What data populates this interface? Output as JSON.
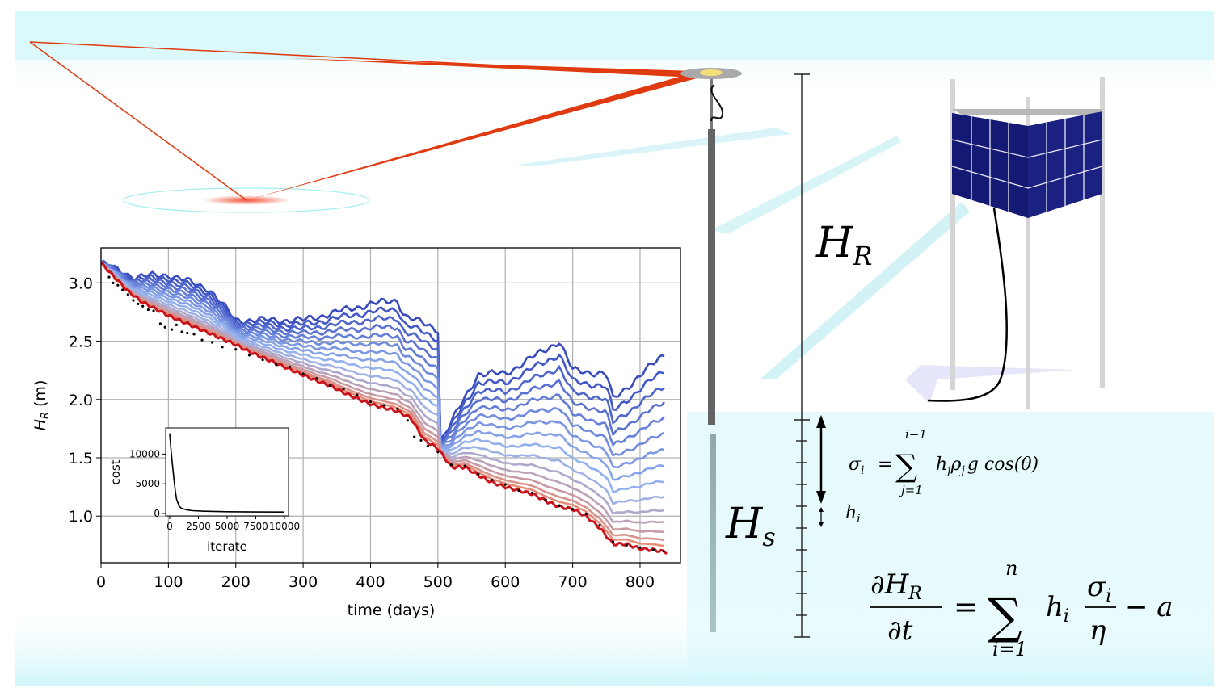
{
  "diagram": {
    "labels": {
      "hr_label": {
        "main": "H",
        "sub": "R"
      },
      "hs_label": {
        "main": "H",
        "sub": "s"
      },
      "hi_label": {
        "main": "h",
        "sub": "i"
      }
    },
    "equations": {
      "sigma": {
        "lhs_main": "σ",
        "lhs_sub": "i",
        "equals": "=",
        "sum_upper": "i−1",
        "sum_lower": "j=1",
        "terms": [
          "h",
          "j",
          "ρ",
          "j",
          "g cos(θ)"
        ]
      },
      "rate": {
        "num": "∂H",
        "num_sub": "R",
        "den": "∂t",
        "equals": "=",
        "sum_upper": "n",
        "sum_lower": "i=1",
        "term_h": "h",
        "term_sub": "i",
        "frac_num": "σ",
        "frac_num_sub": "i",
        "frac_den": "η",
        "tail": "− a"
      }
    },
    "colors": {
      "sky": "#d8f8fb",
      "laser": "#e03a10",
      "panel": "#141a73",
      "mast": "#d5d5d5",
      "stake": "#666666"
    }
  },
  "chart_data": [
    {
      "type": "line",
      "title": "",
      "xlabel": "time (days)",
      "ylabel_main": "H",
      "ylabel_sub": "R",
      "ylabel_unit": " (m)",
      "xlim": [
        0,
        860
      ],
      "ylim": [
        0.6,
        3.3
      ],
      "xticks": [
        0,
        100,
        200,
        300,
        400,
        500,
        600,
        700,
        800
      ],
      "yticks": [
        1.0,
        1.5,
        2.0,
        2.5,
        3.0
      ],
      "xtick_labels": [
        "0",
        "100",
        "200",
        "300",
        "400",
        "500",
        "600",
        "700",
        "800"
      ],
      "ytick_labels": [
        "1.0",
        "1.5",
        "2.0",
        "2.5",
        "3.0"
      ],
      "grid": true,
      "best_fit": {
        "x": [
          0,
          20,
          40,
          60,
          80,
          100,
          120,
          140,
          160,
          180,
          200,
          220,
          240,
          260,
          280,
          300,
          320,
          340,
          360,
          380,
          400,
          420,
          440,
          460,
          480,
          500,
          520,
          540,
          560,
          580,
          600,
          620,
          640,
          660,
          680,
          700,
          720,
          740,
          760,
          780,
          800,
          820,
          840
        ],
        "y": [
          3.17,
          3.05,
          2.93,
          2.84,
          2.78,
          2.72,
          2.67,
          2.62,
          2.57,
          2.52,
          2.47,
          2.41,
          2.36,
          2.31,
          2.26,
          2.21,
          2.16,
          2.12,
          2.06,
          2.01,
          1.96,
          1.93,
          1.9,
          1.84,
          1.65,
          1.58,
          1.42,
          1.42,
          1.35,
          1.29,
          1.25,
          1.22,
          1.19,
          1.13,
          1.08,
          1.06,
          1.0,
          0.9,
          0.76,
          0.76,
          0.72,
          0.71,
          0.69
        ]
      },
      "observations": {
        "x": [
          12,
          18,
          25,
          32,
          40,
          48,
          55,
          62,
          70,
          78,
          88,
          95,
          105,
          112,
          120,
          128,
          138,
          150,
          165,
          180,
          200,
          220,
          240,
          260,
          280,
          300,
          320,
          340,
          360,
          380,
          400,
          420,
          440,
          455,
          465,
          475,
          485,
          500,
          520,
          540,
          560,
          580,
          600,
          620,
          640,
          660,
          680,
          700,
          720,
          740,
          760,
          780,
          800,
          820,
          835
        ],
        "y": [
          3.05,
          3.0,
          2.98,
          2.94,
          2.9,
          2.85,
          2.82,
          2.8,
          2.77,
          2.76,
          2.65,
          2.62,
          2.6,
          2.64,
          2.58,
          2.57,
          2.56,
          2.51,
          2.49,
          2.45,
          2.43,
          2.38,
          2.34,
          2.3,
          2.28,
          2.22,
          2.18,
          2.12,
          2.09,
          2.04,
          1.98,
          1.95,
          1.92,
          1.82,
          1.68,
          1.65,
          1.6,
          1.55,
          1.44,
          1.43,
          1.36,
          1.31,
          1.27,
          1.22,
          1.2,
          1.14,
          1.09,
          1.06,
          1.02,
          0.92,
          0.78,
          0.75,
          0.73,
          0.71,
          0.7
        ]
      },
      "ensemble": {
        "x": [
          0,
          50,
          100,
          160,
          200,
          300,
          400,
          440,
          450,
          500,
          502,
          560,
          600,
          680,
          700,
          750,
          760,
          838
        ],
        "top_y": [
          3.17,
          3.05,
          3.07,
          2.95,
          2.68,
          2.68,
          2.82,
          2.85,
          2.72,
          2.6,
          1.62,
          2.22,
          2.22,
          2.5,
          2.25,
          2.22,
          2.0,
          2.4
        ],
        "levels": [
          1.0,
          0.92,
          0.84,
          0.76,
          0.68,
          0.6,
          0.52,
          0.44,
          0.36,
          0.28,
          0.21,
          0.15,
          0.1,
          0.06,
          0.03
        ]
      }
    },
    {
      "type": "line",
      "xlabel": "iterate",
      "ylabel": "cost",
      "xlim": [
        0,
        10000
      ],
      "ylim": [
        0,
        14000
      ],
      "xticks": [
        0,
        2500,
        5000,
        7500,
        10000
      ],
      "yticks": [
        0,
        5000,
        10000
      ],
      "xtick_labels": [
        "0",
        "2500",
        "5000",
        "7500",
        "10000"
      ],
      "ytick_labels": [
        "0",
        "5000",
        "10000"
      ],
      "x": [
        0,
        100,
        200,
        300,
        400,
        500,
        600,
        800,
        1000,
        1500,
        2000,
        3000,
        5000,
        7500,
        10000
      ],
      "y": [
        13500,
        11000,
        9000,
        7000,
        5200,
        3600,
        2400,
        1300,
        900,
        600,
        480,
        380,
        300,
        260,
        240
      ]
    }
  ]
}
